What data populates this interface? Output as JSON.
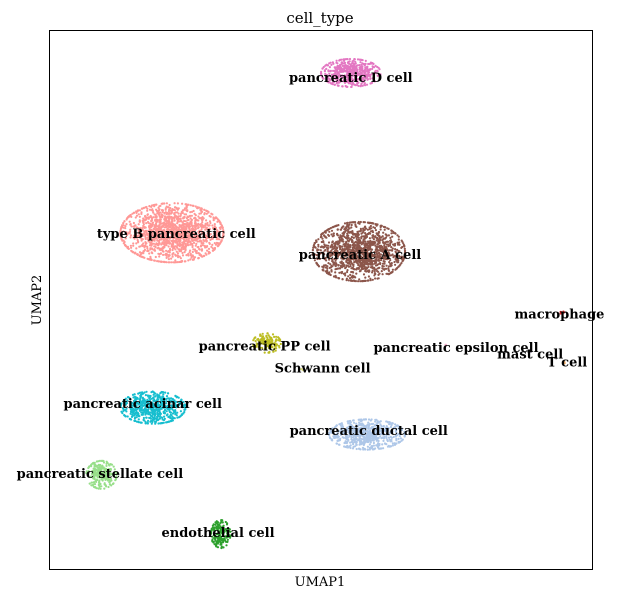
{
  "chart_data": {
    "type": "scatter",
    "title": "cell_type",
    "xlabel": "UMAP1",
    "ylabel": "UMAP2",
    "xlim": [
      0,
      100
    ],
    "ylim": [
      0,
      100
    ],
    "grid": false,
    "ticks": false,
    "legend": "on data",
    "clusters": [
      {
        "name": "pancreatic D cell",
        "color": "#e377c2",
        "center": [
          55.5,
          92.2
        ],
        "spread": [
          5.5,
          2.6
        ],
        "count": 520,
        "label_at": [
          55.5,
          91.2
        ]
      },
      {
        "name": "type B pancreatic cell",
        "color": "#ff9896",
        "center": [
          22.5,
          62.5
        ],
        "spread": [
          9.5,
          5.5
        ],
        "count": 1500,
        "label_at": [
          23.3,
          62.2
        ]
      },
      {
        "name": "pancreatic A cell",
        "color": "#8c564b",
        "center": [
          57.0,
          59.0
        ],
        "spread": [
          8.5,
          5.5
        ],
        "count": 1300,
        "label_at": [
          57.2,
          58.3
        ]
      },
      {
        "name": "pancreatic PP cell",
        "color": "#bcbd22",
        "center": [
          40.0,
          42.0
        ],
        "spread": [
          2.6,
          1.8
        ],
        "count": 160,
        "label_at": [
          39.6,
          41.3
        ]
      },
      {
        "name": "Schwann cell",
        "color": "#dbdb8d",
        "center": [
          46.5,
          37.0
        ],
        "spread": [
          0.3,
          0.3
        ],
        "count": 4,
        "label_at": [
          50.3,
          37.2
        ]
      },
      {
        "name": "pancreatic epsilon cell",
        "color": "#f7b6d2",
        "center": [
          73.0,
          41.6
        ],
        "spread": [
          0.3,
          0.3
        ],
        "count": 4,
        "label_at": [
          74.9,
          41.0
        ]
      },
      {
        "name": "macrophage",
        "color": "#d62728",
        "center": [
          94.5,
          47.6
        ],
        "spread": [
          0.4,
          0.3
        ],
        "count": 6,
        "label_at": [
          94.0,
          47.2
        ]
      },
      {
        "name": "mast cell",
        "color": "#9467bd",
        "center": [
          88.5,
          40.5
        ],
        "spread": [
          0.3,
          0.3
        ],
        "count": 5,
        "label_at": [
          88.6,
          39.8
        ]
      },
      {
        "name": "T cell",
        "color": "#ffbb78",
        "center": [
          95.0,
          38.5
        ],
        "spread": [
          0.3,
          0.3
        ],
        "count": 4,
        "label_at": [
          95.4,
          38.3
        ]
      },
      {
        "name": "pancreatic acinar cell",
        "color": "#17becf",
        "center": [
          19.0,
          30.0
        ],
        "spread": [
          6.0,
          3.0
        ],
        "count": 600,
        "label_at": [
          17.1,
          30.6
        ]
      },
      {
        "name": "pancreatic ductal cell",
        "color": "#aec7e8",
        "center": [
          58.5,
          25.0
        ],
        "spread": [
          7.0,
          2.8
        ],
        "count": 650,
        "label_at": [
          58.8,
          25.6
        ]
      },
      {
        "name": "pancreatic stellate cell",
        "color": "#98df8a",
        "center": [
          9.5,
          17.5
        ],
        "spread": [
          2.8,
          2.6
        ],
        "count": 260,
        "label_at": [
          9.2,
          17.6
        ]
      },
      {
        "name": "endothelial cell",
        "color": "#2ca02c",
        "center": [
          31.5,
          6.5
        ],
        "spread": [
          1.8,
          2.6
        ],
        "count": 170,
        "label_at": [
          31.0,
          6.6
        ]
      }
    ]
  }
}
